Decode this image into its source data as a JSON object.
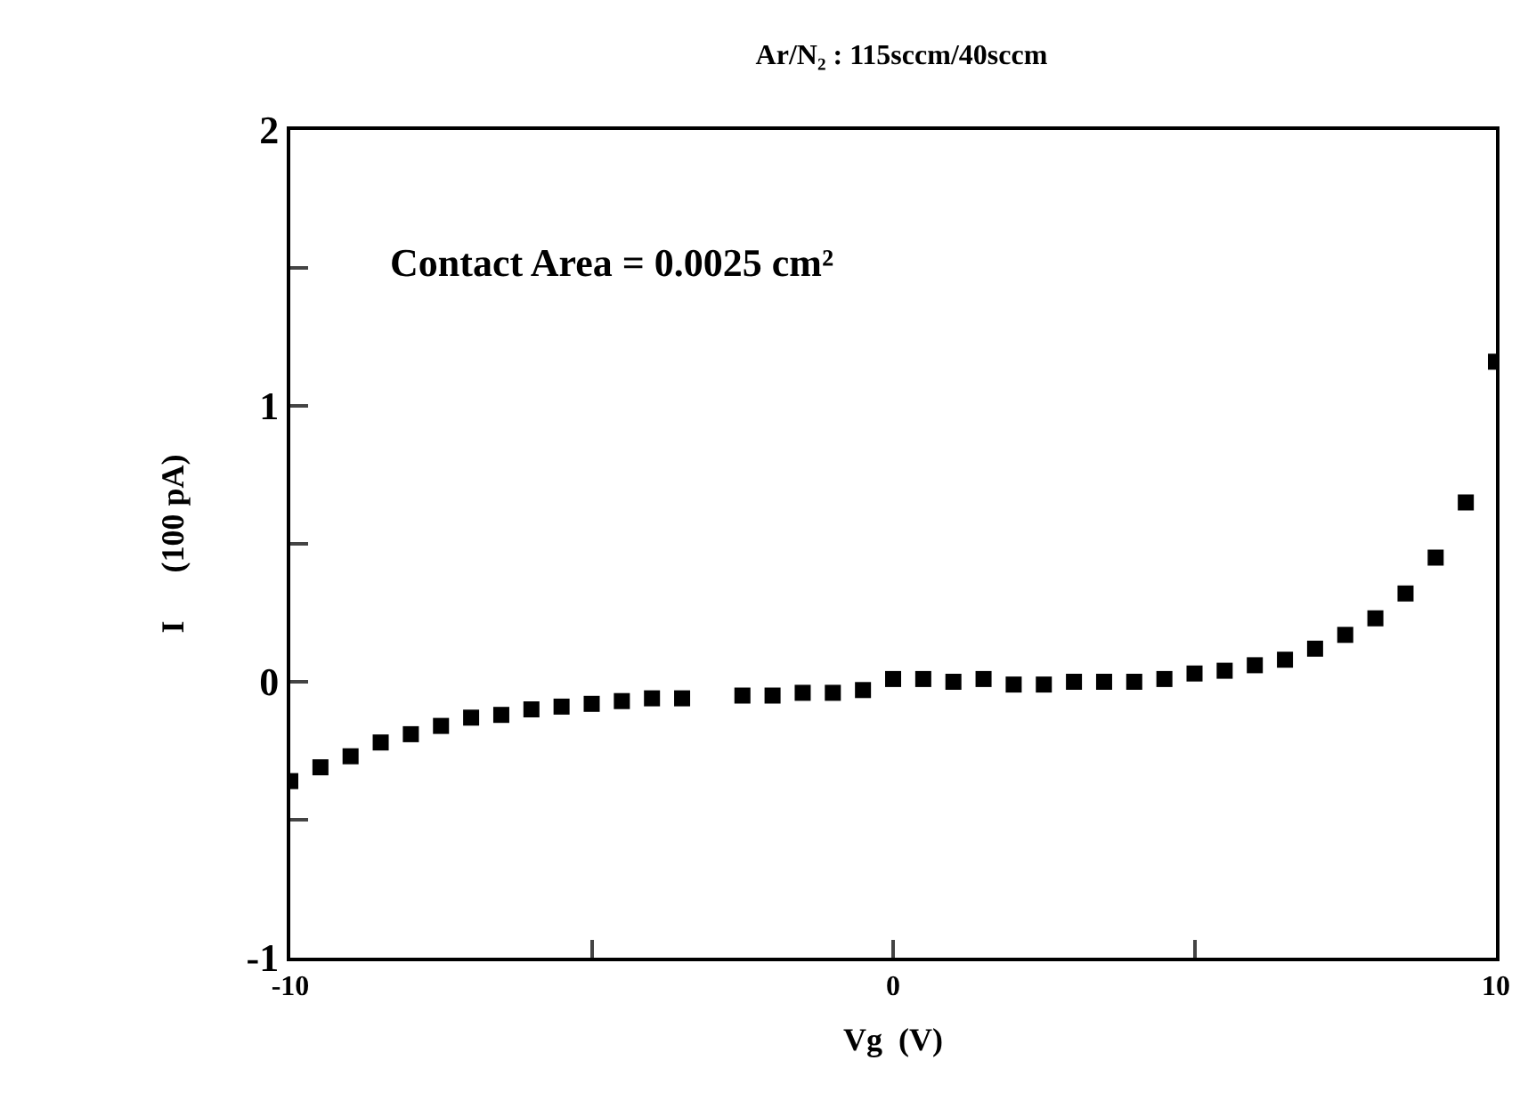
{
  "chart_data": {
    "type": "scatter",
    "title": "Ar/N₂ : 115sccm/40sccm",
    "xlabel": "Vg  (V)",
    "ylabel": "I      (100 pA)",
    "annotations": [
      "Contact Area = 0.0025 cm²"
    ],
    "x": [
      -10,
      -9.5,
      -9,
      -8.5,
      -8,
      -7.5,
      -7,
      -6.5,
      -6,
      -5.5,
      -5,
      -4.5,
      -4,
      -3.5,
      -2.5,
      -2,
      -1.5,
      -1,
      -0.5,
      0,
      0.5,
      1,
      1.5,
      2,
      2.5,
      3,
      3.5,
      4,
      4.5,
      5,
      5.5,
      6,
      6.5,
      7,
      7.5,
      8,
      8.5,
      9,
      9.5,
      10
    ],
    "series": [
      {
        "color": "#000000",
        "values": [
          -0.36,
          -0.31,
          -0.27,
          -0.22,
          -0.19,
          -0.16,
          -0.13,
          -0.12,
          -0.1,
          -0.09,
          -0.08,
          -0.07,
          -0.06,
          -0.06,
          -0.05,
          -0.05,
          -0.04,
          -0.04,
          -0.03,
          0.01,
          0.01,
          0.0,
          0.01,
          -0.01,
          -0.01,
          0.0,
          0.0,
          0.0,
          0.01,
          0.03,
          0.04,
          0.06,
          0.08,
          0.12,
          0.17,
          0.23,
          0.32,
          0.45,
          0.65,
          1.16
        ]
      }
    ],
    "marker": "square",
    "xlim": [
      -10,
      10
    ],
    "xticks": [
      -10,
      {
        "value": -5,
        "label": null
      },
      0,
      {
        "value": 5,
        "label": null
      },
      10
    ],
    "ylim": [
      -1,
      2
    ],
    "yticks": [
      -1,
      {
        "value": -0.5,
        "label": null
      },
      0,
      {
        "value": 0.5,
        "label": null
      },
      1,
      {
        "value": 1.5,
        "label": null
      },
      2
    ]
  }
}
